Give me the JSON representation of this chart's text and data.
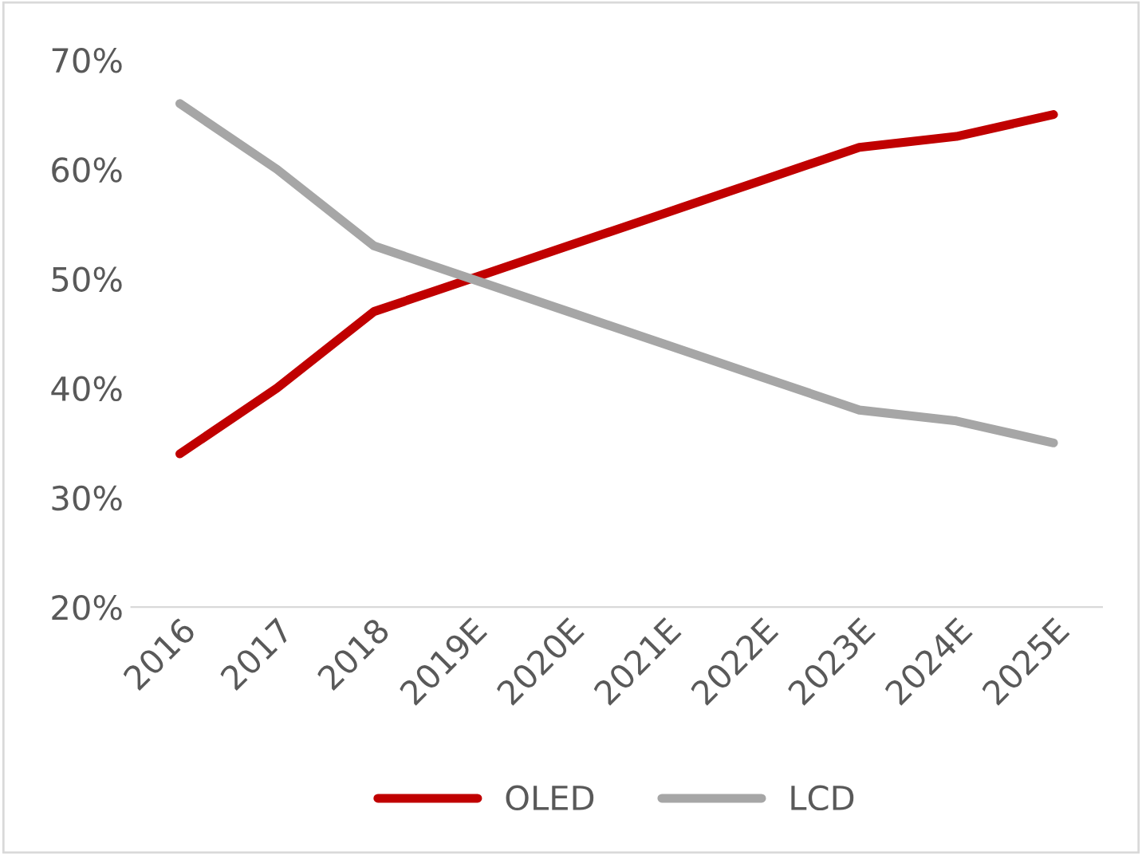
{
  "chart_data": {
    "type": "line",
    "categories": [
      "2016",
      "2017",
      "2018",
      "2019E",
      "2020E",
      "2021E",
      "2022E",
      "2023E",
      "2024E",
      "2025E"
    ],
    "series": [
      {
        "name": "OLED",
        "color": "#c00000",
        "values": [
          34,
          40,
          47,
          50,
          53,
          56,
          59,
          62,
          63,
          65
        ]
      },
      {
        "name": "LCD",
        "color": "#a6a6a6",
        "values": [
          66,
          60,
          53,
          50,
          47,
          44,
          41,
          38,
          37,
          35
        ]
      }
    ],
    "ylim": [
      20,
      70
    ],
    "yticks": [
      {
        "value": 20,
        "label": "20%"
      },
      {
        "value": 30,
        "label": "30%"
      },
      {
        "value": 40,
        "label": "40%"
      },
      {
        "value": 50,
        "label": "50%"
      },
      {
        "value": 60,
        "label": "60%"
      },
      {
        "value": 70,
        "label": "70%"
      }
    ],
    "grid": false,
    "legend": "bottom",
    "marker": "none",
    "line_style": "solid"
  }
}
